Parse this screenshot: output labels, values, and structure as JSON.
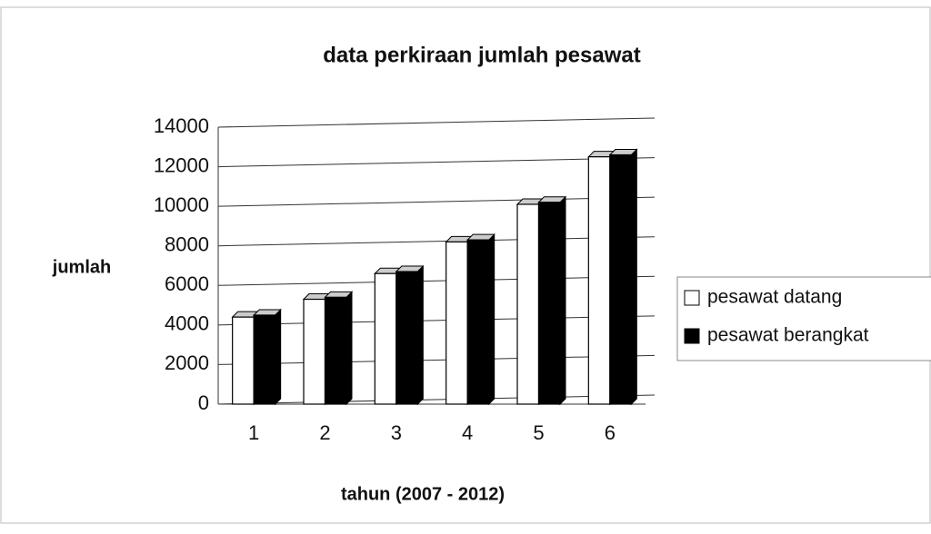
{
  "chart_data": {
    "type": "bar",
    "title": "data perkiraan jumlah pesawat",
    "x_label": "tahun (2007 - 2012)",
    "y_label": "jumlah",
    "categories": [
      "1",
      "2",
      "3",
      "4",
      "5",
      "6"
    ],
    "series": [
      {
        "name": "pesawat datang",
        "color": "#ffffff",
        "values": [
          4400,
          5300,
          6600,
          8200,
          10100,
          12500
        ]
      },
      {
        "name": "pesawat berangkat",
        "color": "#000000",
        "values": [
          4500,
          5400,
          6700,
          8300,
          10200,
          12600
        ]
      }
    ],
    "ylim": [
      0,
      14000
    ],
    "yticks": [
      0,
      2000,
      4000,
      6000,
      8000,
      10000,
      12000,
      14000
    ],
    "grid": true,
    "legend": "right"
  }
}
